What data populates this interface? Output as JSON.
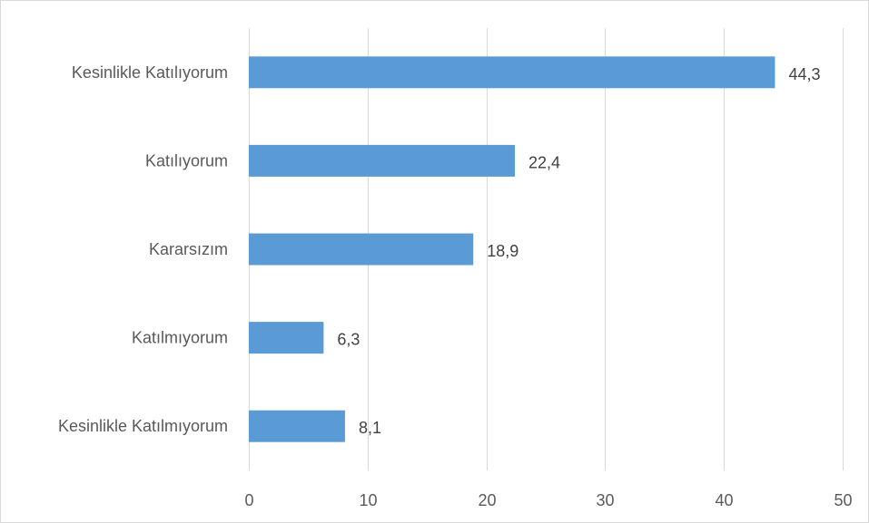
{
  "chart_data": {
    "type": "bar",
    "orientation": "horizontal",
    "categories": [
      "Kesinlikle Katılıyorum",
      "Katılıyorum",
      "Kararsızım",
      "Katılmıyorum",
      "Kesinlikle Katılmıyorum"
    ],
    "values": [
      44.3,
      22.4,
      18.9,
      6.3,
      8.1
    ],
    "data_labels": [
      "44,3",
      "22,4",
      "18,9",
      "6,3",
      "8,1"
    ],
    "xlim": [
      0,
      50
    ],
    "xticks": [
      0,
      10,
      20,
      30,
      40,
      50
    ],
    "xtick_labels": [
      "0",
      "10",
      "20",
      "30",
      "40",
      "50"
    ],
    "title": "",
    "xlabel": "",
    "ylabel": "",
    "grid": "vertical",
    "legend": "none",
    "bar_color": "#5b9bd5",
    "gridline_color": "#d9d9d9",
    "text_color": "#595959"
  }
}
